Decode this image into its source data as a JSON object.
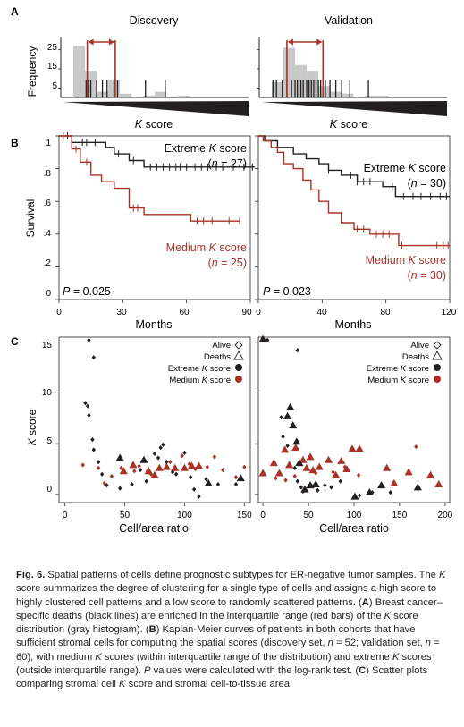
{
  "figure": {
    "panel_labels": [
      "A",
      "B",
      "C"
    ],
    "panelA": {
      "titles": [
        "Discovery",
        "Validation"
      ],
      "ylabel": "Frequency",
      "yticks": [
        "25",
        "15",
        "5"
      ],
      "xlabel_pre": "K",
      "xlabel_post": " score"
    },
    "panelB": {
      "ylabel": "Survival",
      "xlabel": "Months",
      "yticks": [
        "1",
        ".8",
        ".6",
        ".4",
        ".2",
        "0"
      ],
      "left": {
        "xticks": [
          "0",
          "30",
          "60",
          "90"
        ],
        "extreme_pre": "Extreme ",
        "extreme_k": "K",
        "extreme_post": " score",
        "extreme_n_pre": "(",
        "extreme_n_var": "n",
        "extreme_n_post": " = 27)",
        "medium_pre": "Medium ",
        "medium_k": "K",
        "medium_post": " score",
        "medium_n_pre": "(",
        "medium_n_var": "n",
        "medium_n_post": " = 25)",
        "p_var": "P",
        "p_post": " = 0.025"
      },
      "right": {
        "xticks": [
          "0",
          "40",
          "80",
          "120"
        ],
        "extreme_pre": "Extreme ",
        "extreme_k": "K",
        "extreme_post": " score",
        "extreme_n_pre": "(",
        "extreme_n_var": "n",
        "extreme_n_post": " = 30)",
        "medium_pre": "Medium ",
        "medium_k": "K",
        "medium_post": " score",
        "medium_n_pre": "(",
        "medium_n_var": "n",
        "medium_n_post": " = 30)",
        "p_var": "P",
        "p_post": " = 0.023"
      }
    },
    "panelC": {
      "ylabel_k": "K",
      "ylabel_post": " score",
      "xlabel": "Cell/area ratio",
      "yticks": [
        "15",
        "10",
        "5",
        "0"
      ],
      "left_xticks": [
        "0",
        "50",
        "100",
        "150"
      ],
      "right_xticks": [
        "0",
        "50",
        "100",
        "150",
        "200"
      ],
      "legend": {
        "alive": "Alive",
        "deaths": "Deaths",
        "extreme_pre": "Extreme ",
        "extreme_k": "K",
        "extreme_post": " score",
        "medium_pre": "Medium ",
        "medium_k": "K",
        "medium_post": " score"
      }
    },
    "colors": {
      "red": "#a93226",
      "black": "#231f20",
      "gray": "#c8c8c8"
    }
  },
  "chart_data": [
    {
      "type": "bar",
      "title": "Discovery",
      "ylabel": "Frequency",
      "ylim": [
        0,
        30
      ],
      "histogram": [
        {
          "bin": 1,
          "value": 27
        },
        {
          "bin": 2,
          "value": 14
        },
        {
          "bin": 3,
          "value": 3
        },
        {
          "bin": 4,
          "value": 9
        },
        {
          "bin": 5,
          "value": 2
        },
        {
          "bin": 6,
          "value": 0
        },
        {
          "bin": 7,
          "value": 1
        },
        {
          "bin": 8,
          "value": 3
        },
        {
          "bin": 9,
          "value": 0
        },
        {
          "bin": 10,
          "value": 1
        }
      ],
      "death_lines": [
        0.11,
        0.13,
        0.15,
        0.2,
        0.25,
        0.29,
        0.35,
        0.38,
        0.62,
        0.79
      ],
      "interquartile_range": [
        0.12,
        0.36
      ]
    },
    {
      "type": "bar",
      "title": "Validation",
      "ylabel": "Frequency",
      "ylim": [
        0,
        30
      ],
      "histogram": [
        {
          "bin": 1,
          "value": 8
        },
        {
          "bin": 2,
          "value": 26
        },
        {
          "bin": 3,
          "value": 17
        },
        {
          "bin": 4,
          "value": 14
        },
        {
          "bin": 5,
          "value": 6
        },
        {
          "bin": 6,
          "value": 3
        },
        {
          "bin": 7,
          "value": 2
        },
        {
          "bin": 8,
          "value": 0
        },
        {
          "bin": 9,
          "value": 1
        },
        {
          "bin": 10,
          "value": 1
        }
      ],
      "death_lines": [
        0.01,
        0.04,
        0.09,
        0.13,
        0.17,
        0.2,
        0.22,
        0.25,
        0.27,
        0.3,
        0.32,
        0.34,
        0.36,
        0.38,
        0.4,
        0.42,
        0.46,
        0.5,
        0.55,
        0.6,
        0.67,
        0.83
      ],
      "interquartile_range": [
        0.13,
        0.44
      ]
    },
    {
      "type": "line",
      "xlabel": "Months",
      "ylabel": "Survival",
      "xlim": [
        0,
        90
      ],
      "ylim": [
        0,
        1
      ],
      "series": [
        {
          "name": "Extreme K score (n = 27)",
          "color": "#231f20",
          "steps": [
            [
              0,
              1
            ],
            [
              6,
              1
            ],
            [
              6,
              0.96
            ],
            [
              22,
              0.96
            ],
            [
              22,
              0.93
            ],
            [
              26,
              0.93
            ],
            [
              26,
              0.89
            ],
            [
              33,
              0.89
            ],
            [
              33,
              0.85
            ],
            [
              40,
              0.85
            ],
            [
              40,
              0.81
            ],
            [
              92,
              0.81
            ]
          ],
          "censor": [
            2,
            4,
            11,
            13,
            17,
            28,
            35,
            43,
            46,
            49,
            52,
            55,
            57,
            60,
            64,
            67,
            70,
            74,
            77,
            82,
            87,
            91
          ]
        },
        {
          "name": "Medium K score (n = 25)",
          "color": "#a93226",
          "steps": [
            [
              0,
              1
            ],
            [
              6,
              1
            ],
            [
              6,
              0.92
            ],
            [
              10,
              0.92
            ],
            [
              10,
              0.84
            ],
            [
              15,
              0.84
            ],
            [
              15,
              0.76
            ],
            [
              20,
              0.76
            ],
            [
              20,
              0.72
            ],
            [
              26,
              0.72
            ],
            [
              26,
              0.68
            ],
            [
              33,
              0.68
            ],
            [
              33,
              0.56
            ],
            [
              40,
              0.56
            ],
            [
              40,
              0.52
            ],
            [
              62,
              0.52
            ],
            [
              62,
              0.48
            ],
            [
              85,
              0.48
            ]
          ],
          "censor": [
            8,
            13,
            35,
            37,
            65,
            68,
            72,
            80,
            85
          ]
        }
      ]
    },
    {
      "type": "line",
      "xlabel": "Months",
      "ylabel": "Survival",
      "xlim": [
        0,
        120
      ],
      "ylim": [
        0,
        1
      ],
      "series": [
        {
          "name": "Extreme K score (n = 30)",
          "color": "#231f20",
          "steps": [
            [
              0,
              1
            ],
            [
              4,
              1
            ],
            [
              4,
              0.97
            ],
            [
              12,
              0.97
            ],
            [
              12,
              0.93
            ],
            [
              22,
              0.93
            ],
            [
              22,
              0.89
            ],
            [
              30,
              0.89
            ],
            [
              30,
              0.86
            ],
            [
              38,
              0.86
            ],
            [
              38,
              0.83
            ],
            [
              44,
              0.83
            ],
            [
              44,
              0.79
            ],
            [
              52,
              0.79
            ],
            [
              52,
              0.76
            ],
            [
              62,
              0.76
            ],
            [
              62,
              0.72
            ],
            [
              78,
              0.72
            ],
            [
              78,
              0.69
            ],
            [
              86,
              0.69
            ],
            [
              86,
              0.63
            ],
            [
              120,
              0.63
            ]
          ],
          "censor": [
            44,
            58,
            62,
            66,
            70,
            84,
            91,
            97,
            102,
            108,
            114,
            118
          ]
        },
        {
          "name": "Medium K score (n = 30)",
          "color": "#a93226",
          "steps": [
            [
              0,
              1
            ],
            [
              3,
              1
            ],
            [
              3,
              0.97
            ],
            [
              8,
              0.97
            ],
            [
              8,
              0.93
            ],
            [
              12,
              0.93
            ],
            [
              12,
              0.9
            ],
            [
              16,
              0.9
            ],
            [
              16,
              0.83
            ],
            [
              22,
              0.83
            ],
            [
              22,
              0.8
            ],
            [
              28,
              0.8
            ],
            [
              28,
              0.73
            ],
            [
              33,
              0.73
            ],
            [
              33,
              0.67
            ],
            [
              38,
              0.67
            ],
            [
              38,
              0.6
            ],
            [
              44,
              0.6
            ],
            [
              44,
              0.53
            ],
            [
              52,
              0.53
            ],
            [
              52,
              0.47
            ],
            [
              60,
              0.47
            ],
            [
              60,
              0.43
            ],
            [
              70,
              0.43
            ],
            [
              70,
              0.4
            ],
            [
              88,
              0.4
            ],
            [
              88,
              0.33
            ],
            [
              120,
              0.33
            ]
          ],
          "censor": [
            62,
            66,
            74,
            78,
            82,
            90,
            112,
            116,
            119
          ]
        }
      ]
    },
    {
      "type": "scatter",
      "xlabel": "Cell/area ratio",
      "ylabel": "K score",
      "xlim": [
        -5,
        155
      ],
      "ylim": [
        -0.8,
        15.5
      ],
      "legend": [
        "Alive",
        "Deaths",
        "Extreme K score",
        "Medium K score"
      ],
      "alive_extreme": [
        [
          20,
          15.2
        ],
        [
          24,
          13.5
        ],
        [
          17,
          9
        ],
        [
          19,
          8.7
        ],
        [
          20,
          7.8
        ],
        [
          23,
          5.4
        ],
        [
          24,
          4.4
        ],
        [
          28,
          3.2
        ],
        [
          31,
          2
        ],
        [
          35,
          0.9
        ],
        [
          46,
          0.6
        ],
        [
          56,
          1
        ],
        [
          63,
          2.4
        ],
        [
          68,
          1.3
        ],
        [
          75,
          4
        ],
        [
          78,
          3.6
        ],
        [
          80,
          4.6
        ],
        [
          82,
          4.9
        ],
        [
          85,
          3.2
        ],
        [
          90,
          2.2
        ],
        [
          93,
          2
        ],
        [
          100,
          4.1
        ],
        [
          105,
          1.7
        ],
        [
          108,
          0.5
        ],
        [
          112,
          -0.2
        ],
        [
          118,
          1.5
        ],
        [
          128,
          1
        ],
        [
          143,
          1
        ]
      ],
      "deaths_extreme": [
        [
          46,
          3.6
        ],
        [
          66,
          3.4
        ],
        [
          120,
          1.1
        ],
        [
          147,
          1.6
        ]
      ],
      "alive_medium": [
        [
          15,
          2.9
        ],
        [
          28,
          2.6
        ],
        [
          33,
          1.1
        ],
        [
          39,
          1.8
        ],
        [
          47,
          2.6
        ],
        [
          58,
          2.3
        ],
        [
          62,
          2.8
        ],
        [
          69,
          2.3
        ],
        [
          72,
          2
        ],
        [
          88,
          3.2
        ],
        [
          98,
          3.8
        ],
        [
          104,
          3
        ],
        [
          109,
          2.5
        ],
        [
          119,
          2.7
        ],
        [
          125,
          3.7
        ],
        [
          132,
          2.4
        ],
        [
          143,
          1.7
        ],
        [
          150,
          2.7
        ]
      ],
      "deaths_medium": [
        [
          49,
          2.3
        ],
        [
          57,
          2.9
        ],
        [
          70,
          2.3
        ],
        [
          75,
          1.9
        ],
        [
          79,
          2.6
        ],
        [
          85,
          2.7
        ],
        [
          92,
          2.6
        ],
        [
          100,
          2.6
        ],
        [
          106,
          2.8
        ],
        [
          112,
          2.8
        ]
      ]
    },
    {
      "type": "scatter",
      "xlabel": "Cell/area ratio",
      "ylabel": "K score",
      "xlim": [
        -5,
        205
      ],
      "ylim": [
        -0.8,
        15.5
      ],
      "legend": [
        "Alive",
        "Deaths",
        "Extreme K score",
        "Medium K score"
      ],
      "alive_extreme": [
        [
          5,
          15.2
        ],
        [
          38,
          14.2
        ],
        [
          20,
          7.6
        ],
        [
          22,
          5.7
        ],
        [
          27,
          4.8
        ],
        [
          35,
          2.6
        ],
        [
          38,
          1.3
        ],
        [
          42,
          0.7
        ],
        [
          44,
          0.3
        ],
        [
          55,
          0.8
        ],
        [
          60,
          0.4
        ],
        [
          68,
          0.9
        ],
        [
          75,
          0.7
        ],
        [
          85,
          1.3
        ],
        [
          106,
          -0.1
        ],
        [
          120,
          0.2
        ],
        [
          140,
          0.2
        ]
      ],
      "deaths_extreme": [
        [
          0,
          15.3
        ],
        [
          27,
          7.7
        ],
        [
          30,
          8.6
        ],
        [
          33,
          6.8
        ],
        [
          37,
          5.2
        ],
        [
          40,
          3.1
        ],
        [
          46,
          0.5
        ],
        [
          52,
          0.9
        ],
        [
          58,
          1
        ],
        [
          101,
          -0.2
        ],
        [
          117,
          0.2
        ],
        [
          130,
          0.9
        ],
        [
          170,
          0.7
        ]
      ],
      "alive_medium": [
        [
          14,
          1.6
        ],
        [
          25,
          1.4
        ],
        [
          35,
          1.8
        ],
        [
          58,
          2.1
        ],
        [
          77,
          2.2
        ],
        [
          90,
          2.7
        ],
        [
          105,
          1.9
        ],
        [
          168,
          4.7
        ]
      ],
      "deaths_medium": [
        [
          0,
          2.1
        ],
        [
          12,
          3.1
        ],
        [
          18,
          2.1
        ],
        [
          24,
          4.4
        ],
        [
          29,
          2.9
        ],
        [
          36,
          4.6
        ],
        [
          44,
          3.4
        ],
        [
          48,
          2.6
        ],
        [
          52,
          3.7
        ],
        [
          55,
          2.4
        ],
        [
          62,
          2.7
        ],
        [
          72,
          3.4
        ],
        [
          80,
          1.9
        ],
        [
          86,
          3.3
        ],
        [
          92,
          2.5
        ],
        [
          98,
          4.5
        ],
        [
          106,
          4.5
        ],
        [
          136,
          2.6
        ],
        [
          144,
          1.1
        ],
        [
          160,
          2.2
        ],
        [
          184,
          1.9
        ],
        [
          193,
          1
        ]
      ]
    }
  ],
  "caption": {
    "fig_label": "Fig. 6.",
    "t1": " Spatial patterns of cells define prognostic subtypes for ER-negative tumor samples. The ",
    "k1": "K",
    "t2": " score summarizes the degree of clustering for a single type of cells and assigns a high score to highly clustered cell patterns and a low score to randomly scattered patterns. (",
    "a": "A",
    "t3": ") Breast cancer–specific deaths (black lines) are enriched in the interquartile range (red bars) of the ",
    "k2": "K",
    "t4": " score distribution (gray histogram). (",
    "b": "B",
    "t5": ") Kaplan-Meier curves of patients in both cohorts that have sufficient stromal cells for computing the spatial scores (discovery set, ",
    "n1": "n",
    "t6": " = 52; validation set, ",
    "n2": "n",
    "t7": " = 60), with medium ",
    "k3": "K",
    "t8": " scores (within interquartile range of the distribution) and extreme ",
    "k4": "K",
    "t9": " scores (outside interquartile range). ",
    "p": "P",
    "t10": " values were calculated with the log-rank test. (",
    "c": "C",
    "t11": ") Scatter plots comparing stromal cell ",
    "k5": "K",
    "t12": " score and stromal cell-to-tissue area."
  }
}
